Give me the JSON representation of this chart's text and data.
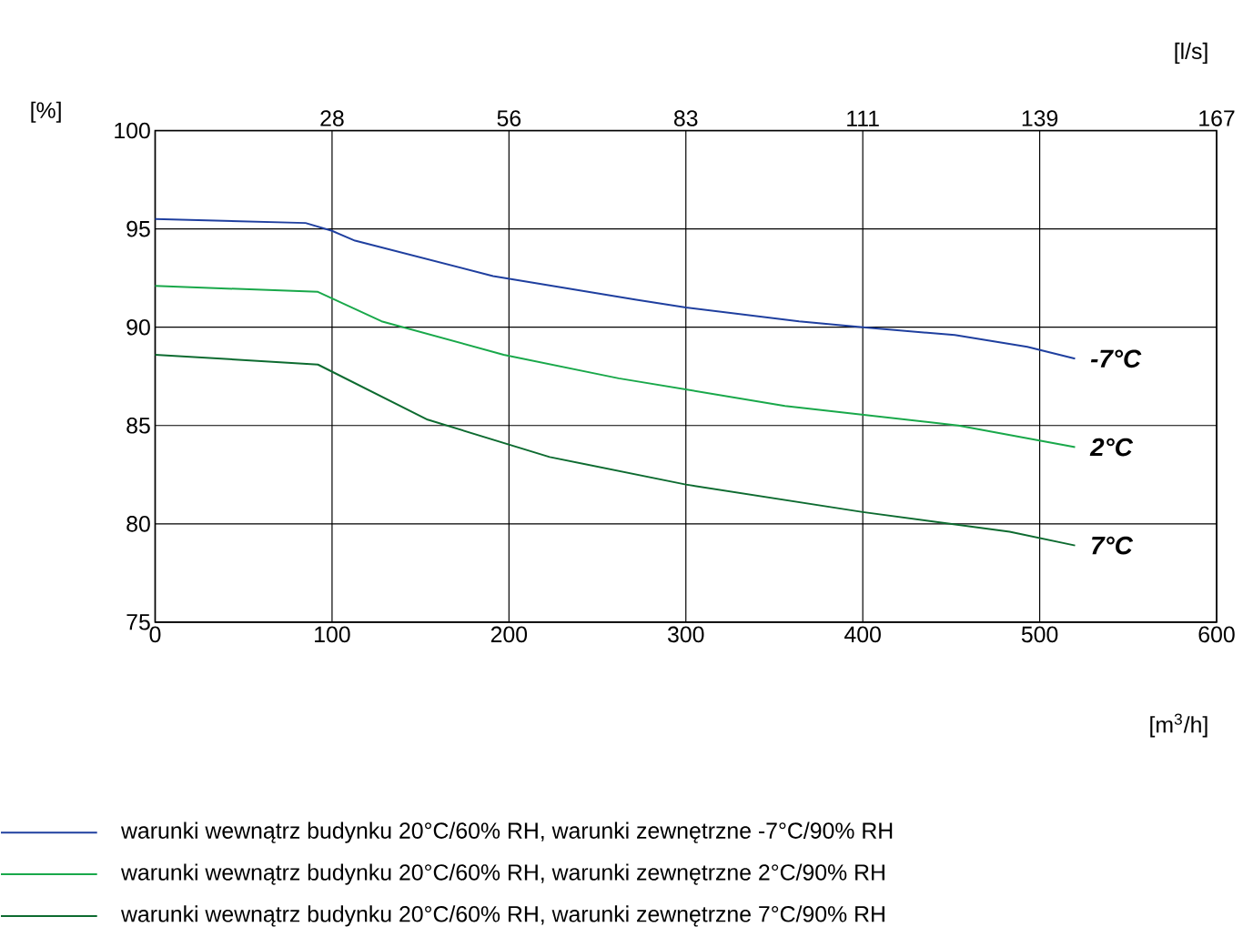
{
  "chart_data": {
    "type": "line",
    "xlabel": "[m$^{3}$/h]",
    "ylabel": "[%]",
    "x2label": "[l/s]",
    "xlim": [
      0,
      600
    ],
    "xticks": [
      0,
      100,
      200,
      300,
      400,
      500,
      600
    ],
    "ylim": [
      75,
      100
    ],
    "yticks": [
      75,
      80,
      85,
      90,
      95,
      100
    ],
    "x2lim": [
      0,
      166.67
    ],
    "x2ticks": [
      {
        "value": 27.78,
        "label": "28"
      },
      {
        "value": 55.56,
        "label": "56"
      },
      {
        "value": 83.33,
        "label": "83"
      },
      {
        "value": 111.11,
        "label": "111"
      },
      {
        "value": 138.89,
        "label": "139"
      },
      {
        "value": 166.67,
        "label": "167"
      }
    ],
    "grid": true,
    "legend": "bottom",
    "marker": "none",
    "line_style": "solid",
    "series": [
      {
        "name": "warunki wewnątrz budynku 20°C/60% RH, warunki zewnętrzne -7°C/90% RH",
        "color": "#1f3f9f",
        "x": [
          0,
          85,
          100,
          113,
          191,
          272,
          300,
          364,
          400,
          452,
          493,
          520
        ],
        "values": [
          95.5,
          95.3,
          94.9,
          94.4,
          92.6,
          91.4,
          91.0,
          90.3,
          90.0,
          89.6,
          89.0,
          88.4
        ]
      },
      {
        "name": "warunki wewnątrz budynku 20°C/60% RH, warunki zewnętrzne 2°C/90% RH",
        "color": "#19a84a",
        "x": [
          0,
          92,
          128,
          197,
          262,
          356,
          454,
          520
        ],
        "values": [
          92.1,
          91.8,
          90.3,
          88.6,
          87.4,
          86.0,
          85.0,
          83.9
        ]
      },
      {
        "name": "warunki wewnątrz budynku 20°C/60% RH, warunki zewnętrzne 7°C/90% RH",
        "color": "#0d6b30",
        "x": [
          0,
          92,
          154,
          223,
          300,
          400,
          483,
          520
        ],
        "values": [
          88.6,
          88.1,
          85.3,
          83.4,
          82.0,
          80.6,
          79.6,
          78.9
        ]
      }
    ],
    "annotations": [
      "-7°C",
      "2°C",
      "7°C"
    ]
  }
}
